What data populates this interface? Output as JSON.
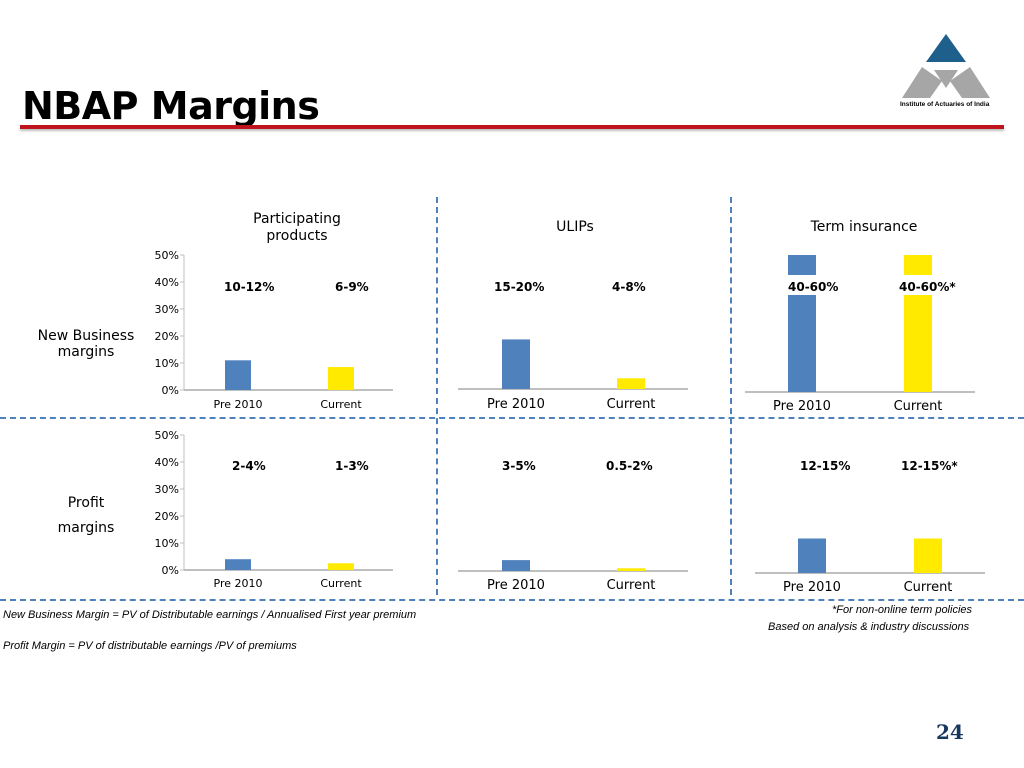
{
  "header": {
    "title": "NBAP Margins",
    "logo_text": "Institute of Actuaries of India"
  },
  "columns": [
    {
      "label_line1": "Participating",
      "label_line2": "products"
    },
    {
      "label_line1": "ULIPs",
      "label_line2": ""
    },
    {
      "label_line1": "Term insurance",
      "label_line2": ""
    }
  ],
  "rows": [
    {
      "label_line1": "New Business",
      "label_line2": "margins"
    },
    {
      "label_line1": "Profit",
      "label_line2": "margins"
    }
  ],
  "ranges": {
    "nb_par_pre": "10-12%",
    "nb_par_cur": "6-9%",
    "nb_ulip_pre": "15-20%",
    "nb_ulip_cur": "4-8%",
    "nb_term_pre": "40-60%",
    "nb_term_cur": "40-60%*",
    "pm_par_pre": "2-4%",
    "pm_par_cur": "1-3%",
    "pm_ulip_pre": "3-5%",
    "pm_ulip_cur": "0.5-2%",
    "pm_term_pre": "12-15%",
    "pm_term_cur": "12-15%*"
  },
  "colors": {
    "pre2010": "#4f81bd",
    "current": "#ffea00",
    "divider": "#4f81bd",
    "rule": "#c0141c"
  },
  "chart_data": [
    {
      "id": "nb_par",
      "type": "bar",
      "categories": [
        "Pre 2010",
        "Current"
      ],
      "values": [
        11,
        8.5
      ],
      "yticks": [
        "0%",
        "10%",
        "20%",
        "30%",
        "40%",
        "50%"
      ],
      "ylim": [
        0,
        50
      ],
      "title": ""
    },
    {
      "id": "nb_ulip",
      "type": "bar",
      "categories": [
        "Pre 2010",
        "Current"
      ],
      "values": [
        18.5,
        4
      ],
      "title": ""
    },
    {
      "id": "nb_term",
      "type": "bar",
      "categories": [
        "Pre 2010",
        "Current"
      ],
      "values": [
        50,
        50
      ],
      "title": ""
    },
    {
      "id": "pm_par",
      "type": "bar",
      "categories": [
        "Pre 2010",
        "Current"
      ],
      "values": [
        4,
        2.5
      ],
      "yticks": [
        "0%",
        "10%",
        "20%",
        "30%",
        "40%",
        "50%"
      ],
      "ylim": [
        0,
        50
      ],
      "title": ""
    },
    {
      "id": "pm_ulip",
      "type": "bar",
      "categories": [
        "Pre 2010",
        "Current"
      ],
      "values": [
        4,
        1
      ],
      "title": ""
    },
    {
      "id": "pm_term",
      "type": "bar",
      "categories": [
        "Pre 2010",
        "Current"
      ],
      "values": [
        12.5,
        12.5
      ],
      "title": ""
    }
  ],
  "notes": {
    "nbm_def": "New Business Margin = PV of Distributable earnings / Annualised First year premium",
    "pm_def": "Profit Margin = PV of  distributable earnings /PV of premiums",
    "term_note": "*For non-online term policies",
    "source_note": "Based on analysis & industry discussions"
  },
  "page_number": "24"
}
